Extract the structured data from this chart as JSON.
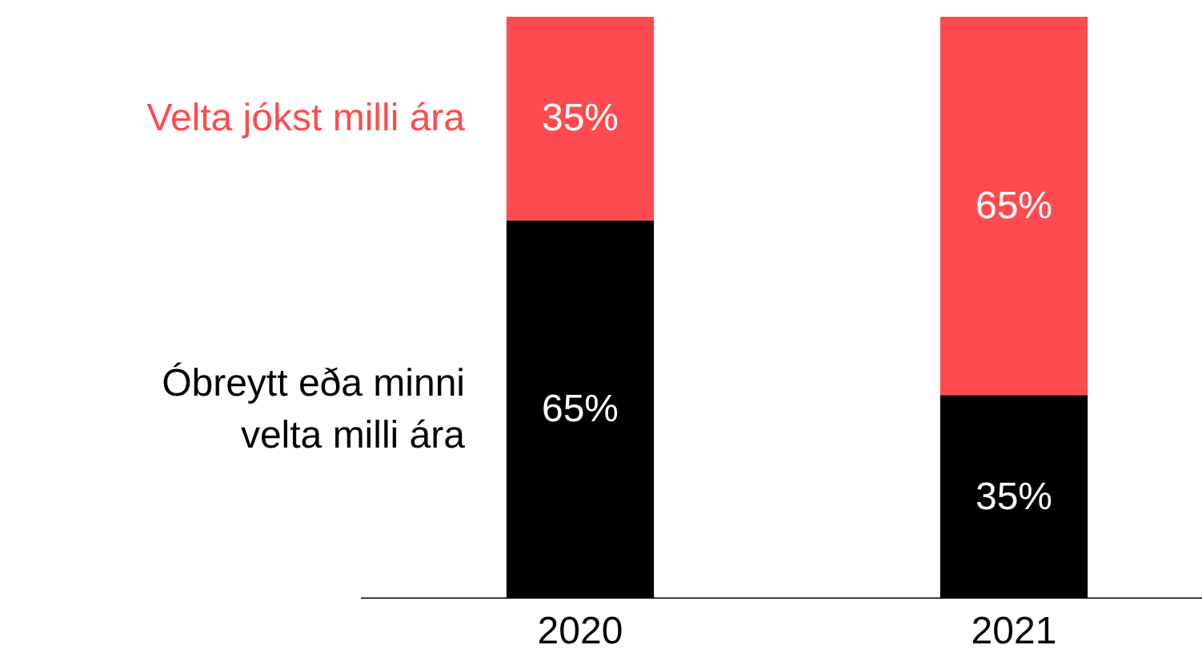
{
  "chart_data": {
    "type": "bar",
    "stacked": true,
    "categories": [
      "2020",
      "2021"
    ],
    "series": [
      {
        "name": "Óbreytt eða minni\nvelta milli ára",
        "color": "#000000",
        "values": [
          65,
          35
        ],
        "value_labels": [
          "65%",
          "35%"
        ]
      },
      {
        "name": "Velta jókst milli ára",
        "color": "#ff4b4f",
        "values": [
          35,
          65
        ],
        "value_labels": [
          "35%",
          "65%"
        ]
      }
    ],
    "grid": false,
    "tick_labels": "x"
  }
}
